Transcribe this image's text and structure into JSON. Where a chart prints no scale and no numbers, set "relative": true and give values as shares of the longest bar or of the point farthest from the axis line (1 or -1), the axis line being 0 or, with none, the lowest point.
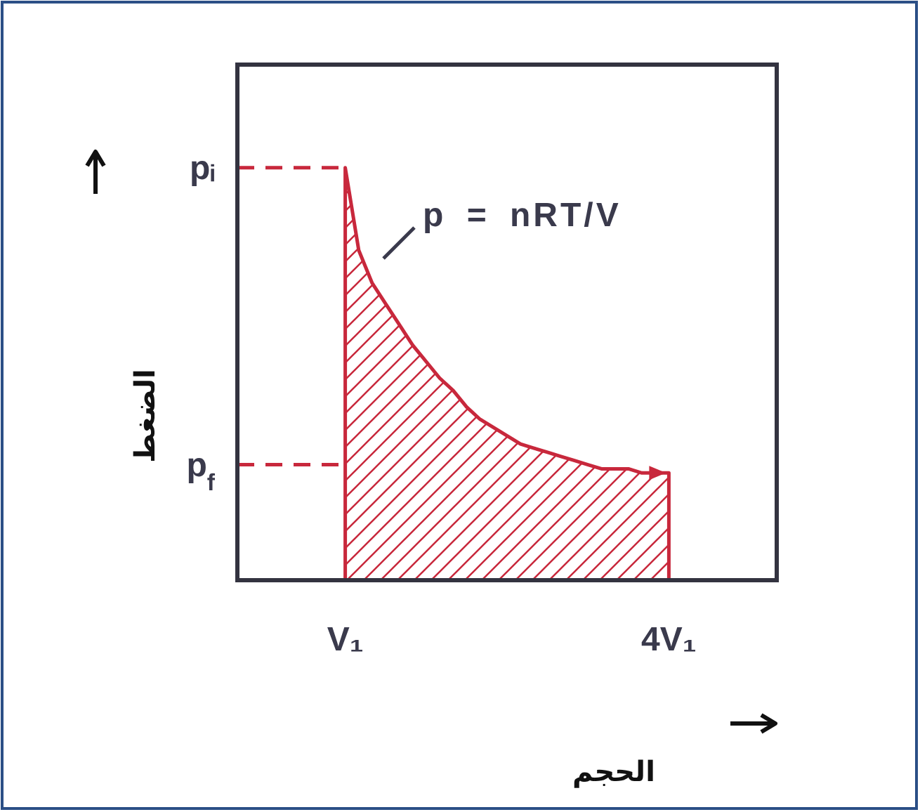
{
  "chart_data": {
    "type": "area",
    "xlabel": "الحجم",
    "ylabel": "الضغط",
    "relative": true,
    "categories": [
      null,
      null,
      null,
      null,
      null,
      null,
      null,
      null,
      "V₁",
      null,
      null,
      null,
      null,
      null,
      null,
      null,
      null,
      null,
      null,
      null,
      null,
      null,
      null,
      null,
      null,
      null,
      null,
      null,
      null,
      null,
      null,
      null,
      "4V₁",
      null,
      null,
      null,
      null,
      null,
      null,
      null,
      null
    ],
    "series": [
      {
        "color": "#c8283c",
        "values": [
          null,
          null,
          null,
          null,
          null,
          null,
          null,
          null,
          1,
          0.8,
          0.72,
          0.67,
          0.62,
          0.57,
          0.53,
          0.49,
          0.46,
          0.42,
          0.39,
          0.37,
          0.35,
          0.33,
          0.32,
          0.31,
          0.3,
          0.29,
          0.28,
          0.27,
          0.27,
          0.27,
          0.26,
          0.26,
          0.26,
          null,
          null,
          null,
          null,
          null,
          null,
          null,
          null
        ]
      },
      {
        "type": "line",
        "name": "pᵢ",
        "color": "#c8283c",
        "line_style": "dashed",
        "values": [
          1,
          1,
          1,
          1,
          1,
          1,
          1,
          1,
          1,
          null,
          null,
          null,
          null,
          null,
          null,
          null,
          null,
          null,
          null,
          null,
          null,
          null,
          null,
          null,
          null,
          null,
          null,
          null,
          null,
          null,
          null,
          null,
          null,
          null,
          null,
          null,
          null,
          null,
          null,
          null,
          null
        ]
      },
      {
        "type": "line",
        "name": "p$_{f}$",
        "color": "#c8283c",
        "line_style": "dashed",
        "values": [
          0.28,
          0.28,
          0.28,
          0.28,
          0.28,
          0.28,
          0.28,
          0.28,
          0.28,
          null,
          null,
          null,
          null,
          null,
          null,
          null,
          null,
          null,
          null,
          null,
          null,
          null,
          null,
          null,
          null,
          null,
          null,
          null,
          null,
          null,
          null,
          null,
          null,
          null,
          null,
          null,
          null,
          null,
          null,
          null,
          null
        ]
      }
    ],
    "annotations": [
      "p = nRT/V"
    ]
  }
}
